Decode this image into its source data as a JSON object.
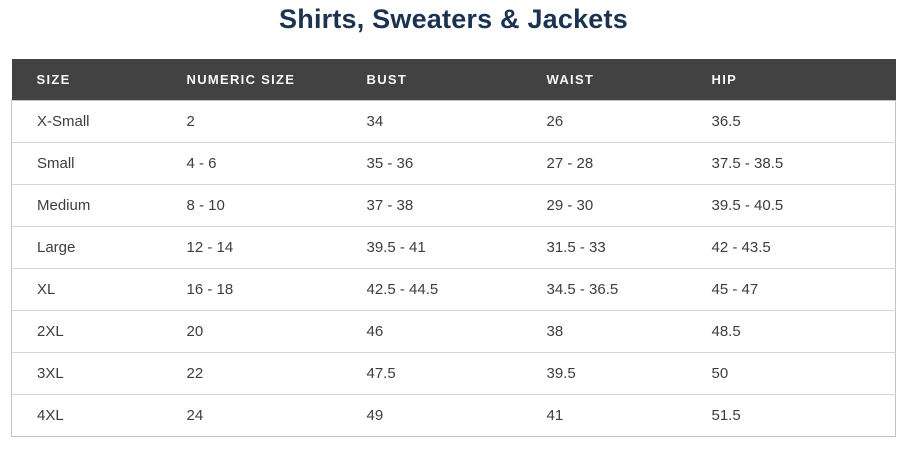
{
  "page": {
    "title": "Shirts, Sweaters & Jackets"
  },
  "colors": {
    "title_text": "#1b3350",
    "header_background": "#424242",
    "header_text": "#f7f7f7",
    "body_text": "#3d3d3d",
    "row_divider": "#d4d4d4"
  },
  "chart_data": {
    "type": "table",
    "title": "Shirts, Sweaters & Jackets",
    "columns": [
      "SIZE",
      "NUMERIC SIZE",
      "BUST",
      "WAIST",
      "HIP"
    ],
    "rows": [
      [
        "X-Small",
        "2",
        "34",
        "26",
        "36.5"
      ],
      [
        "Small",
        "4 - 6",
        "35 - 36",
        "27 - 28",
        "37.5 - 38.5"
      ],
      [
        "Medium",
        "8 - 10",
        "37 - 38",
        "29 - 30",
        "39.5 - 40.5"
      ],
      [
        "Large",
        "12 - 14",
        "39.5 - 41",
        "31.5 - 33",
        "42 - 43.5"
      ],
      [
        "XL",
        "16 - 18",
        "42.5 - 44.5",
        "34.5 - 36.5",
        "45 - 47"
      ],
      [
        "2XL",
        "20",
        "46",
        "38",
        "48.5"
      ],
      [
        "3XL",
        "22",
        "47.5",
        "39.5",
        "50"
      ],
      [
        "4XL",
        "24",
        "49",
        "41",
        "51.5"
      ]
    ]
  }
}
